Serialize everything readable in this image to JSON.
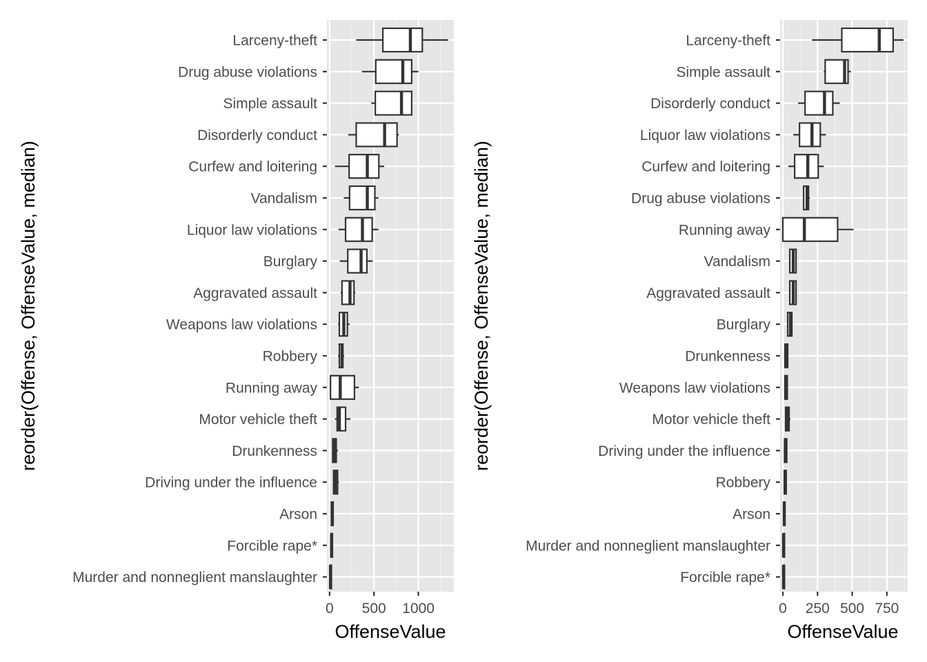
{
  "chart_data": [
    {
      "type": "boxplot",
      "xlabel": "OffenseValue",
      "ylabel": "reorder(Offense, OffenseValue, median)",
      "xlim": [
        -30,
        1400
      ],
      "x_ticks": [
        0,
        500,
        1000
      ],
      "x_tick_labels": [
        "0",
        "500",
        "1000"
      ],
      "grid": true,
      "categories": [
        {
          "label": "Larceny-theft",
          "min": 300,
          "q1": 600,
          "median": 910,
          "q3": 1045,
          "max": 1335
        },
        {
          "label": "Drug abuse violations",
          "min": 365,
          "q1": 520,
          "median": 825,
          "q3": 925,
          "max": 1000
        },
        {
          "label": "Simple assault",
          "min": 470,
          "q1": 515,
          "median": 810,
          "q3": 925,
          "max": 930
        },
        {
          "label": "Disorderly conduct",
          "min": 210,
          "q1": 300,
          "median": 620,
          "q3": 760,
          "max": 780
        },
        {
          "label": "Curfew and loitering",
          "min": 60,
          "q1": 220,
          "median": 425,
          "q3": 555,
          "max": 615
        },
        {
          "label": "Vandalism",
          "min": 160,
          "q1": 225,
          "median": 425,
          "q3": 510,
          "max": 550
        },
        {
          "label": "Liquor law violations",
          "min": 100,
          "q1": 180,
          "median": 370,
          "q3": 480,
          "max": 550
        },
        {
          "label": "Burglary",
          "min": 115,
          "q1": 205,
          "median": 355,
          "q3": 420,
          "max": 485
        },
        {
          "label": "Aggravated assault",
          "min": 125,
          "q1": 140,
          "median": 230,
          "q3": 275,
          "max": 290
        },
        {
          "label": "Weapons law violations",
          "min": 95,
          "q1": 110,
          "median": 160,
          "q3": 200,
          "max": 225
        },
        {
          "label": "Robbery",
          "min": 95,
          "q1": 110,
          "median": 140,
          "q3": 150,
          "max": 165
        },
        {
          "label": "Running away",
          "min": 0,
          "q1": 10,
          "median": 120,
          "q3": 280,
          "max": 330
        },
        {
          "label": "Motor vehicle theft",
          "min": 60,
          "q1": 85,
          "median": 110,
          "q3": 180,
          "max": 235
        },
        {
          "label": "Drunkenness",
          "min": 30,
          "q1": 35,
          "median": 55,
          "q3": 75,
          "max": 95
        },
        {
          "label": "Driving under the influence",
          "min": 40,
          "q1": 45,
          "median": 65,
          "q3": 90,
          "max": 105
        },
        {
          "label": "Arson",
          "min": 15,
          "q1": 20,
          "median": 30,
          "q3": 40,
          "max": 45
        },
        {
          "label": "Forcible rape*",
          "min": 10,
          "q1": 14,
          "median": 22,
          "q3": 32,
          "max": 36
        },
        {
          "label": "Murder and nonneglient manslaughter",
          "min": 2,
          "q1": 5,
          "median": 10,
          "q3": 16,
          "max": 20
        }
      ]
    },
    {
      "type": "boxplot",
      "xlabel": "OffenseValue",
      "ylabel": "reorder(Offense, OffenseValue, median)",
      "xlim": [
        -20,
        900
      ],
      "x_ticks": [
        0,
        250,
        500,
        750
      ],
      "x_tick_labels": [
        "0",
        "250",
        "500",
        "750"
      ],
      "grid": true,
      "categories": [
        {
          "label": "Larceny-theft",
          "min": 210,
          "q1": 425,
          "median": 695,
          "q3": 795,
          "max": 870
        },
        {
          "label": "Simple assault",
          "min": 295,
          "q1": 305,
          "median": 445,
          "q3": 470,
          "max": 490
        },
        {
          "label": "Disorderly conduct",
          "min": 110,
          "q1": 160,
          "median": 300,
          "q3": 360,
          "max": 410
        },
        {
          "label": "Liquor law violations",
          "min": 75,
          "q1": 120,
          "median": 210,
          "q3": 270,
          "max": 310
        },
        {
          "label": "Curfew and loitering",
          "min": 40,
          "q1": 85,
          "median": 180,
          "q3": 255,
          "max": 295
        },
        {
          "label": "Drug abuse violations",
          "min": 145,
          "q1": 150,
          "median": 175,
          "q3": 185,
          "max": 195
        },
        {
          "label": "Running away",
          "min": 0,
          "q1": 0,
          "median": 155,
          "q3": 395,
          "max": 510
        },
        {
          "label": "Vandalism",
          "min": 45,
          "q1": 50,
          "median": 75,
          "q3": 95,
          "max": 95
        },
        {
          "label": "Aggravated assault",
          "min": 45,
          "q1": 50,
          "median": 75,
          "q3": 95,
          "max": 100
        },
        {
          "label": "Burglary",
          "min": 30,
          "q1": 35,
          "median": 55,
          "q3": 65,
          "max": 70
        },
        {
          "label": "Drunkenness",
          "min": 10,
          "q1": 15,
          "median": 25,
          "q3": 35,
          "max": 40
        },
        {
          "label": "Weapons law violations",
          "min": 10,
          "q1": 15,
          "median": 25,
          "q3": 32,
          "max": 36
        },
        {
          "label": "Motor vehicle theft",
          "min": 15,
          "q1": 20,
          "median": 30,
          "q3": 45,
          "max": 55
        },
        {
          "label": "Driving under the influence",
          "min": 8,
          "q1": 12,
          "median": 20,
          "q3": 28,
          "max": 32
        },
        {
          "label": "Robbery",
          "min": 6,
          "q1": 10,
          "median": 18,
          "q3": 24,
          "max": 28
        },
        {
          "label": "Arson",
          "min": 2,
          "q1": 5,
          "median": 10,
          "q3": 15,
          "max": 18
        },
        {
          "label": "Murder and nonneglient manslaughter",
          "min": 0,
          "q1": 2,
          "median": 5,
          "q3": 8,
          "max": 10
        },
        {
          "label": "Forcible rape*",
          "min": 0,
          "q1": 2,
          "median": 5,
          "q3": 9,
          "max": 12
        }
      ]
    }
  ]
}
